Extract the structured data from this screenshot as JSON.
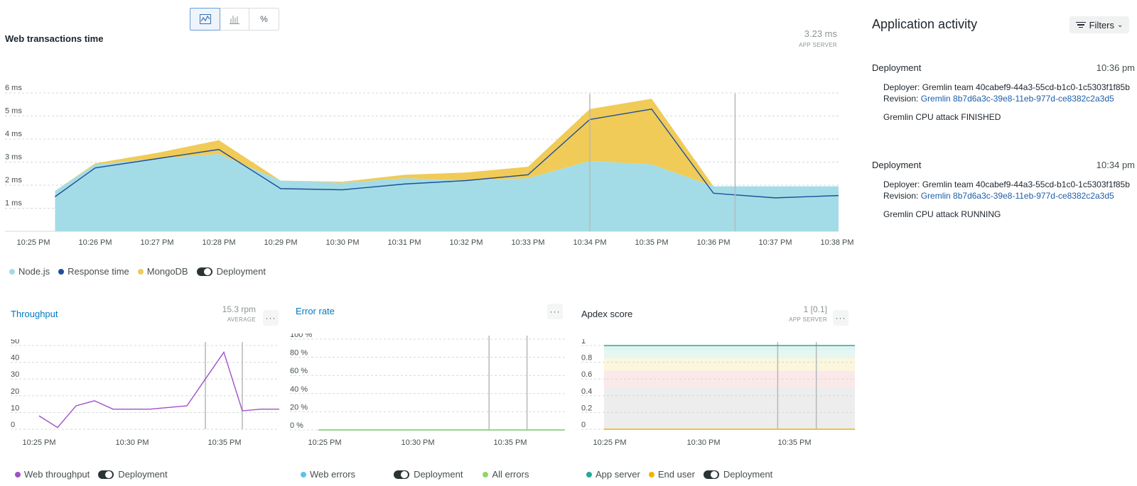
{
  "colors": {
    "nodejs": "#a3dce6",
    "mongodb": "#f0cb58",
    "response": "#1d4f9a",
    "throughput": "#a050c6",
    "errors": "#5bc3e8",
    "all_errors": "#8fd66a",
    "app_server": "#29a89a",
    "end_user": "#f0b400",
    "grid": "#d4d8d8",
    "deploy_marker": "#b6b9b9",
    "link": "#0079bf"
  },
  "toolbar": {
    "icons": [
      "line-chart-icon",
      "bar-chart-icon",
      "percent-icon"
    ],
    "percent_label": "%"
  },
  "main_chart": {
    "title": "Web transactions time",
    "value": "3.23 ms",
    "value_sub": "APP SERVER",
    "legend": {
      "nodejs": "Node.js",
      "response": "Response time",
      "mongodb": "MongoDB",
      "deployment": "Deployment"
    }
  },
  "throughput": {
    "title": "Throughput",
    "value": "15.3  rpm",
    "value_sub": "AVERAGE",
    "more": "···",
    "legend": {
      "series": "Web throughput",
      "deployment": "Deployment"
    }
  },
  "error_rate": {
    "title": "Error rate",
    "more": "···",
    "legend": {
      "web_errors": "Web errors",
      "deployment": "Deployment",
      "all_errors": "All errors"
    }
  },
  "apdex": {
    "title": "Apdex score",
    "value": "1  [0.1]",
    "value_sub": "APP SERVER",
    "more": "···",
    "legend": {
      "app_server": "App server",
      "end_user": "End user",
      "deployment": "Deployment"
    }
  },
  "activity": {
    "title": "Application activity",
    "filters_label": "Filters",
    "events": [
      {
        "type": "Deployment",
        "time": "10:36 pm",
        "deployer": "Deployer: Gremlin team 40cabef9-44a3-55cd-b1c0-1c5303f1f85b",
        "revision_label": "Revision:",
        "revision": "Gremlin 8b7d6a3c-39e8-11eb-977d-ce8382c2a3d5",
        "status": "Gremlin CPU attack FINISHED"
      },
      {
        "type": "Deployment",
        "time": "10:34 pm",
        "deployer": "Deployer: Gremlin team 40cabef9-44a3-55cd-b1c0-1c5303f1f85b",
        "revision_label": "Revision:",
        "revision": "Gremlin 8b7d6a3c-39e8-11eb-977d-ce8382c2a3d5",
        "status": "Gremlin CPU attack RUNNING"
      }
    ]
  },
  "chart_data": [
    {
      "type": "area",
      "title": "Web transactions time",
      "x": [
        "10:25 PM",
        "10:26 PM",
        "10:27 PM",
        "10:28 PM",
        "10:29 PM",
        "10:30 PM",
        "10:31 PM",
        "10:32 PM",
        "10:33 PM",
        "10:34 PM",
        "10:35 PM",
        "10:36 PM",
        "10:37 PM",
        "10:38 PM"
      ],
      "x_ticks": [
        "10:25 PM",
        "10:26 PM",
        "10:27 PM",
        "10:28 PM",
        "10:29 PM",
        "10:30 PM",
        "10:31 PM",
        "10:32 PM",
        "10:33 PM",
        "10:34 PM",
        "10:35 PM",
        "10:36 PM",
        "10:37 PM",
        "10:38 PM"
      ],
      "y_ticks": [
        "1 ms",
        "2 ms",
        "3 ms",
        "4 ms",
        "5 ms",
        "6 ms"
      ],
      "ylim": [
        0,
        6.3
      ],
      "series": [
        {
          "name": "Node.js",
          "type": "area",
          "x": [
            10.35,
            11.0,
            12.0,
            13.0,
            14.0,
            15.0,
            16.0,
            17.0,
            18.0,
            19.0,
            20.0,
            21.0,
            22.0,
            23.0
          ],
          "values": [
            1.75,
            2.9,
            3.15,
            3.35,
            2.2,
            2.1,
            2.3,
            2.2,
            2.3,
            3.05,
            2.9,
            1.95,
            1.95,
            1.95
          ]
        },
        {
          "name": "MongoDB",
          "type": "stacked",
          "x": [
            10.35,
            11.0,
            12.0,
            13.0,
            14.0,
            15.0,
            16.0,
            17.0,
            18.0,
            19.0,
            20.0,
            21.0,
            22.0,
            23.0
          ],
          "values": [
            0.0,
            0.05,
            0.25,
            0.6,
            0.0,
            0.05,
            0.15,
            0.35,
            0.5,
            2.25,
            2.85,
            0.0,
            0.0,
            0.0
          ]
        },
        {
          "name": "Response time",
          "type": "line",
          "x": [
            10.35,
            11.0,
            12.0,
            13.0,
            14.0,
            15.0,
            16.0,
            17.0,
            18.0,
            19.0,
            20.0,
            21.0,
            22.0,
            23.0
          ],
          "values": [
            1.5,
            2.75,
            3.15,
            3.55,
            1.85,
            1.8,
            2.05,
            2.2,
            2.45,
            4.85,
            5.3,
            1.65,
            1.45,
            1.55
          ]
        }
      ],
      "deployments": [
        19.0,
        21.35
      ]
    },
    {
      "type": "line",
      "title": "Throughput",
      "x_ticks": [
        "10:25 PM",
        "10:30 PM",
        "10:35 PM"
      ],
      "y_ticks": [
        "0",
        "10",
        "20",
        "30",
        "40",
        "50"
      ],
      "ylim": [
        0,
        50
      ],
      "series": [
        {
          "name": "Web throughput",
          "x": [
            0.0,
            1.0,
            2.0,
            3.0,
            4.0,
            5.0,
            6.0,
            7.0,
            8.0,
            9.0,
            10.0,
            11.0,
            12.0,
            13.0
          ],
          "values": [
            8,
            1,
            14,
            17,
            12,
            12,
            12,
            13,
            14,
            30,
            46,
            11,
            12,
            12
          ]
        }
      ],
      "deployments": [
        9.0,
        11.0
      ]
    },
    {
      "type": "line",
      "title": "Error rate",
      "x_ticks": [
        "10:25 PM",
        "10:30 PM",
        "10:35 PM"
      ],
      "y_ticks": [
        "0 %",
        "20 %",
        "40 %",
        "60 %",
        "80 %",
        "100 %"
      ],
      "ylim": [
        0,
        100
      ],
      "series": [
        {
          "name": "Web errors",
          "x": [
            0.0,
            13.0
          ],
          "values": [
            0,
            0
          ]
        },
        {
          "name": "All errors",
          "x": [
            0.0,
            13.0
          ],
          "values": [
            0,
            0
          ]
        }
      ],
      "deployments": [
        9.0,
        11.0
      ]
    },
    {
      "type": "line",
      "title": "Apdex score",
      "x_ticks": [
        "10:25 PM",
        "10:30 PM",
        "10:35 PM"
      ],
      "y_ticks": [
        "0",
        "0.2",
        "0.4",
        "0.6",
        "0.8",
        "1"
      ],
      "ylim": [
        0,
        1
      ],
      "series": [
        {
          "name": "App server",
          "x": [
            0.0,
            13.0
          ],
          "values": [
            1,
            1
          ]
        },
        {
          "name": "End user",
          "x": [
            0.0,
            13.0
          ],
          "values": [
            0,
            0
          ]
        }
      ],
      "deployments": [
        9.0,
        11.0
      ]
    }
  ]
}
